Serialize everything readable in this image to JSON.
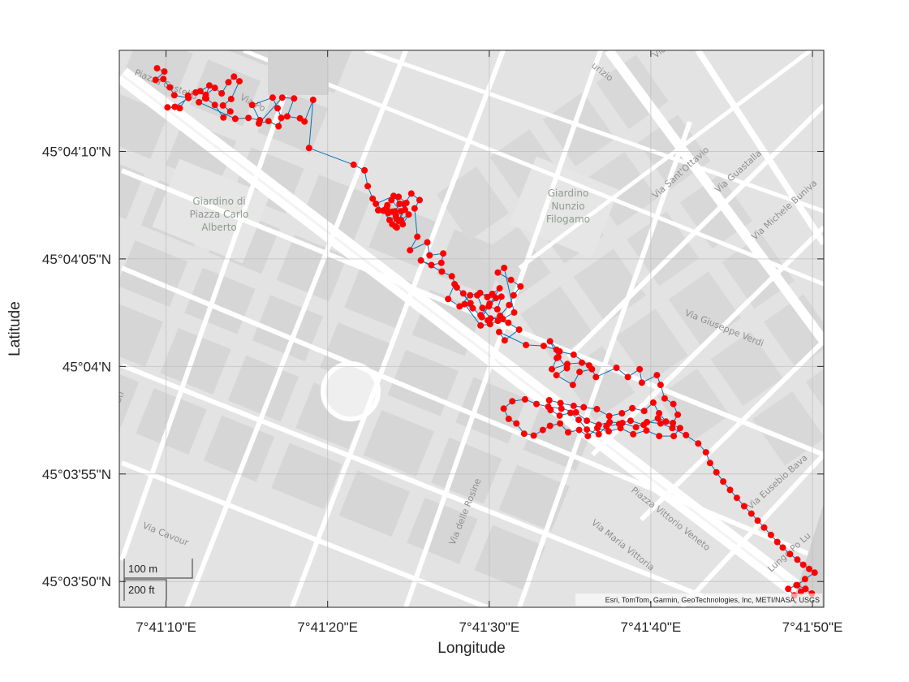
{
  "chart_data": {
    "type": "map-track",
    "xlabel": "Longitude",
    "ylabel": "Latitude",
    "x_ticks": [
      {
        "label": "7°41'10\"E",
        "lon": 7.686111
      },
      {
        "label": "7°41'20\"E",
        "lon": 7.688889
      },
      {
        "label": "7°41'30\"E",
        "lon": 7.691667
      },
      {
        "label": "7°41'40\"E",
        "lon": 7.694444
      },
      {
        "label": "7°41'50\"E",
        "lon": 7.697222
      }
    ],
    "y_ticks": [
      {
        "label": "45°04'10\"N",
        "lat": 45.069444
      },
      {
        "label": "45°04'05\"N",
        "lat": 45.068056
      },
      {
        "label": "45°04'N",
        "lat": 45.066667
      },
      {
        "label": "45°03'55\"N",
        "lat": 45.065278
      },
      {
        "label": "45°03'50\"N",
        "lat": 45.063889
      }
    ],
    "xlim": [
      7.685308,
      7.697417
    ],
    "ylim": [
      45.063556,
      45.07075
    ],
    "grid": true,
    "marker_color": "#ff0000",
    "line_color": "#0072bd",
    "track": [
      [
        7.685957,
        45.070518
      ],
      [
        7.686082,
        45.070476
      ],
      [
        7.685933,
        45.070368
      ],
      [
        7.686066,
        45.07038
      ],
      [
        7.686176,
        45.070272
      ],
      [
        7.686254,
        45.07017
      ],
      [
        7.686497,
        45.070134
      ],
      [
        7.686262,
        45.07002
      ],
      [
        7.686137,
        45.070014
      ],
      [
        7.686348,
        45.070002
      ],
      [
        7.686489,
        45.070164
      ],
      [
        7.686621,
        45.070206
      ],
      [
        7.686794,
        45.070176
      ],
      [
        7.68695,
        45.070266
      ],
      [
        7.687067,
        45.070194
      ],
      [
        7.687185,
        45.070338
      ],
      [
        7.687279,
        45.07041
      ],
      [
        7.687372,
        45.07035
      ],
      [
        7.687231,
        45.070122
      ],
      [
        7.68709,
        45.070038
      ],
      [
        7.687216,
        45.06996
      ],
      [
        7.687098,
        45.069882
      ],
      [
        7.68695,
        45.070044
      ],
      [
        7.686801,
        45.070128
      ],
      [
        7.6867,
        45.070224
      ],
      [
        7.686857,
        45.070296
      ],
      [
        7.686786,
        45.070134
      ],
      [
        7.686676,
        45.07008
      ],
      [
        7.687301,
        45.069866
      ],
      [
        7.687528,
        45.069878
      ],
      [
        7.687723,
        45.069848
      ],
      [
        7.687591,
        45.070044
      ],
      [
        7.687943,
        45.07014
      ],
      [
        7.688029,
        45.070002
      ],
      [
        7.688093,
        45.069878
      ],
      [
        7.688045,
        45.06977
      ],
      [
        7.687872,
        45.069836
      ],
      [
        7.687708,
        45.069806
      ],
      [
        7.688109,
        45.07014
      ],
      [
        7.688312,
        45.070128
      ],
      [
        7.688195,
        45.069896
      ],
      [
        7.688414,
        45.069872
      ],
      [
        7.688492,
        45.06983
      ],
      [
        7.68864,
        45.07011
      ],
      [
        7.68857,
        45.069488
      ],
      [
        7.689336,
        45.069272
      ],
      [
        7.689523,
        45.0692
      ],
      [
        7.689578,
        45.068996
      ],
      [
        7.689664,
        45.068834
      ],
      [
        7.689758,
        45.068684
      ],
      [
        7.689914,
        45.06875
      ],
      [
        7.68993,
        45.068648
      ],
      [
        7.690047,
        45.068672
      ],
      [
        7.690125,
        45.068768
      ],
      [
        7.690242,
        45.06878
      ],
      [
        7.690109,
        45.068858
      ],
      [
        7.689985,
        45.068816
      ],
      [
        7.690149,
        45.068672
      ],
      [
        7.69007,
        45.068576
      ],
      [
        7.69,
        45.068504
      ],
      [
        7.689844,
        45.068678
      ],
      [
        7.689719,
        45.068768
      ],
      [
        7.690023,
        45.06887
      ],
      [
        7.690219,
        45.06869
      ],
      [
        7.69011,
        45.068546
      ],
      [
        7.69,
        45.068666
      ],
      [
        7.689906,
        45.068714
      ],
      [
        7.690063,
        45.068612
      ],
      [
        7.689953,
        45.068558
      ],
      [
        7.690055,
        45.068474
      ],
      [
        7.690149,
        45.068558
      ],
      [
        7.690281,
        45.06863
      ],
      [
        7.69018,
        45.068504
      ],
      [
        7.690078,
        45.068462
      ],
      [
        7.690211,
        45.068768
      ],
      [
        7.690328,
        45.0689
      ],
      [
        7.690469,
        45.068816
      ],
      [
        7.690383,
        45.068708
      ],
      [
        7.69043,
        45.068342
      ],
      [
        7.690305,
        45.068168
      ],
      [
        7.690602,
        45.06827
      ],
      [
        7.690641,
        45.068102
      ],
      [
        7.690875,
        45.068126
      ],
      [
        7.690844,
        45.068006
      ],
      [
        7.690672,
        45.067976
      ],
      [
        7.690492,
        45.068036
      ],
      [
        7.690852,
        45.067892
      ],
      [
        7.691024,
        45.067832
      ],
      [
        7.69111,
        45.067688
      ],
      [
        7.69122,
        45.06761
      ],
      [
        7.691345,
        45.067484
      ],
      [
        7.691071,
        45.06773
      ],
      [
        7.690961,
        45.067538
      ],
      [
        7.691157,
        45.067442
      ],
      [
        7.691337,
        45.067586
      ],
      [
        7.691509,
        45.067616
      ],
      [
        7.691634,
        45.067562
      ],
      [
        7.691782,
        45.06755
      ],
      [
        7.691657,
        45.067442
      ],
      [
        7.691806,
        45.067406
      ],
      [
        7.691876,
        45.067568
      ],
      [
        7.691673,
        45.067478
      ],
      [
        7.691517,
        45.067328
      ],
      [
        7.691642,
        45.067262
      ],
      [
        7.691853,
        45.067322
      ],
      [
        7.692009,
        45.06746
      ],
      [
        7.692087,
        45.067586
      ],
      [
        7.692204,
        45.0677
      ],
      [
        7.69204,
        45.067784
      ],
      [
        7.691814,
        45.06788
      ],
      [
        7.691923,
        45.06794
      ],
      [
        7.692095,
        45.067364
      ],
      [
        7.6919,
        45.06728
      ],
      [
        7.691689,
        45.067286
      ],
      [
        7.691549,
        45.067424
      ],
      [
        7.691462,
        45.067586
      ],
      [
        7.69172,
        45.067604
      ],
      [
        7.691845,
        45.067676
      ],
      [
        7.69154,
        45.067304
      ],
      [
        7.691384,
        45.067418
      ],
      [
        7.691243,
        45.067472
      ],
      [
        7.691517,
        45.067196
      ],
      [
        7.691681,
        45.067214
      ],
      [
        7.691814,
        45.067256
      ],
      [
        7.691994,
        45.067232
      ],
      [
        7.69218,
        45.067142
      ],
      [
        7.691931,
        45.067004
      ],
      [
        7.691837,
        45.067112
      ],
      [
        7.692298,
        45.066944
      ],
      [
        7.692603,
        45.066932
      ],
      [
        7.692822,
        45.066884
      ],
      [
        7.692829,
        45.066776
      ],
      [
        7.692743,
        45.066632
      ],
      [
        7.693009,
        45.066698
      ],
      [
        7.693259,
        45.066716
      ],
      [
        7.693384,
        45.06668
      ],
      [
        7.693118,
        45.066818
      ],
      [
        7.692876,
        45.06686
      ],
      [
        7.692712,
        45.066992
      ],
      [
        7.692853,
        45.066788
      ],
      [
        7.693001,
        45.066644
      ],
      [
        7.692822,
        45.066554
      ],
      [
        7.693103,
        45.066428
      ],
      [
        7.69322,
        45.066596
      ],
      [
        7.693431,
        45.066632
      ],
      [
        7.693501,
        45.06653
      ],
      [
        7.693853,
        45.06665
      ],
      [
        7.694049,
        45.06653
      ],
      [
        7.694252,
        45.066632
      ],
      [
        7.694291,
        45.066458
      ],
      [
        7.694549,
        45.066554
      ],
      [
        7.694611,
        45.066428
      ],
      [
        7.694681,
        45.066254
      ],
      [
        7.69483,
        45.066182
      ],
      [
        7.694908,
        45.066044
      ],
      [
        7.694823,
        45.065936
      ],
      [
        7.694565,
        45.065996
      ],
      [
        7.694323,
        45.065912
      ],
      [
        7.694095,
        45.065966
      ],
      [
        7.6939,
        45.065924
      ],
      [
        7.693681,
        45.065894
      ],
      [
        7.693548,
        45.065792
      ],
      [
        7.693345,
        45.065852
      ],
      [
        7.693204,
        45.065978
      ],
      [
        7.693064,
        45.066068
      ],
      [
        7.692876,
        45.066032
      ],
      [
        7.69272,
        45.066104
      ],
      [
        7.692697,
        45.06623
      ],
      [
        7.692892,
        45.066194
      ],
      [
        7.693118,
        45.066158
      ],
      [
        7.69329,
        45.06614
      ],
      [
        7.693517,
        45.066116
      ],
      [
        7.693728,
        45.066026
      ],
      [
        7.693947,
        45.066062
      ],
      [
        7.694126,
        45.066128
      ],
      [
        7.69433,
        45.066092
      ],
      [
        7.694486,
        45.0662
      ],
      [
        7.694587,
        45.066062
      ],
      [
        7.694705,
        45.065954
      ],
      [
        7.694947,
        45.06587
      ],
      [
        7.694837,
        45.065768
      ],
      [
        7.694588,
        45.065768
      ],
      [
        7.694369,
        45.06584
      ],
      [
        7.694142,
        45.065792
      ],
      [
        7.693923,
        45.06587
      ],
      [
        7.69372,
        45.065828
      ],
      [
        7.693525,
        45.06587
      ],
      [
        7.693361,
        45.065768
      ],
      [
        7.693212,
        45.065846
      ],
      [
        7.693023,
        45.065816
      ],
      [
        7.692884,
        45.06593
      ],
      [
        7.692712,
        45.0659
      ],
      [
        7.692587,
        45.065846
      ],
      [
        7.692431,
        45.065774
      ],
      [
        7.692267,
        45.065798
      ],
      [
        7.692134,
        45.06593
      ],
      [
        7.692001,
        45.06599
      ],
      [
        7.691915,
        45.066122
      ],
      [
        7.692063,
        45.066218
      ],
      [
        7.692282,
        45.066242
      ],
      [
        7.692478,
        45.066182
      ],
      [
        7.692681,
        45.066146
      ],
      [
        7.692907,
        45.066122
      ],
      [
        7.693157,
        45.066074
      ],
      [
        7.693345,
        45.065966
      ],
      [
        7.693548,
        45.065912
      ],
      [
        7.693736,
        45.065948
      ],
      [
        7.693954,
        45.065936
      ],
      [
        7.694189,
        45.065882
      ],
      [
        7.694377,
        45.065948
      ],
      [
        7.694611,
        45.06593
      ],
      [
        7.694814,
        45.06587
      ],
      [
        7.695048,
        45.06578
      ],
      [
        7.695259,
        45.065672
      ],
      [
        7.695392,
        45.065558
      ],
      [
        7.695462,
        45.06542
      ],
      [
        7.695572,
        45.0653
      ],
      [
        7.695689,
        45.06518
      ],
      [
        7.695806,
        45.065072
      ],
      [
        7.695923,
        45.06497
      ],
      [
        7.696048,
        45.064862
      ],
      [
        7.696173,
        45.064766
      ],
      [
        7.696282,
        45.064676
      ],
      [
        7.696392,
        45.064586
      ],
      [
        7.696509,
        45.06449
      ],
      [
        7.696618,
        45.0644
      ],
      [
        7.696712,
        45.064328
      ],
      [
        7.696837,
        45.064244
      ],
      [
        7.696962,
        45.064172
      ],
      [
        7.697064,
        45.064106
      ],
      [
        7.697166,
        45.064052
      ],
      [
        7.697259,
        45.064004
      ],
      [
        7.697095,
        45.06392
      ],
      [
        7.696962,
        45.063842
      ],
      [
        7.697025,
        45.063758
      ],
      [
        7.696908,
        45.06371
      ],
      [
        7.696806,
        45.063794
      ],
      [
        7.696947,
        45.063842
      ],
      [
        7.697103,
        45.063794
      ],
      [
        7.697212,
        45.063734
      ]
    ]
  },
  "streets": {
    "piazza_castello": "Piazza Castello",
    "via_po": "Via Po",
    "maurizio": "urizio",
    "via_artisti": "Via Artisti",
    "via_santottavio": "Via Sant'Ottavio",
    "via_guastalla": "Via Guastalla",
    "via_michele_buniva": "Via Michele Buniva",
    "via_giuseppe_verdi": "Via Giuseppe Verdi",
    "via_eusebio_bava": "Via Eusebio Bava",
    "lungo_po": "Lungo Po Lu",
    "piazza_vittorio_veneto": "Piazza Vittorio Veneto",
    "via_maria_vittoria": "Via Maria Vittoria",
    "via_delle_rosine": "Via delle Rosine",
    "via_cavour": "Via Cavour",
    "edge_fragment": "sti",
    "park_carlo_alberto": [
      "Giardino di",
      "Piazza Carlo",
      "Alberto"
    ],
    "park_filogamo": [
      "Giardino",
      "Nunzio",
      "Filogamo"
    ]
  },
  "scalebar": {
    "metric": "100 m",
    "imperial": "200 ft"
  },
  "attribution": "Esri, TomTom, Garmin, GeoTechnologies, Inc, METI/NASA, USGS"
}
